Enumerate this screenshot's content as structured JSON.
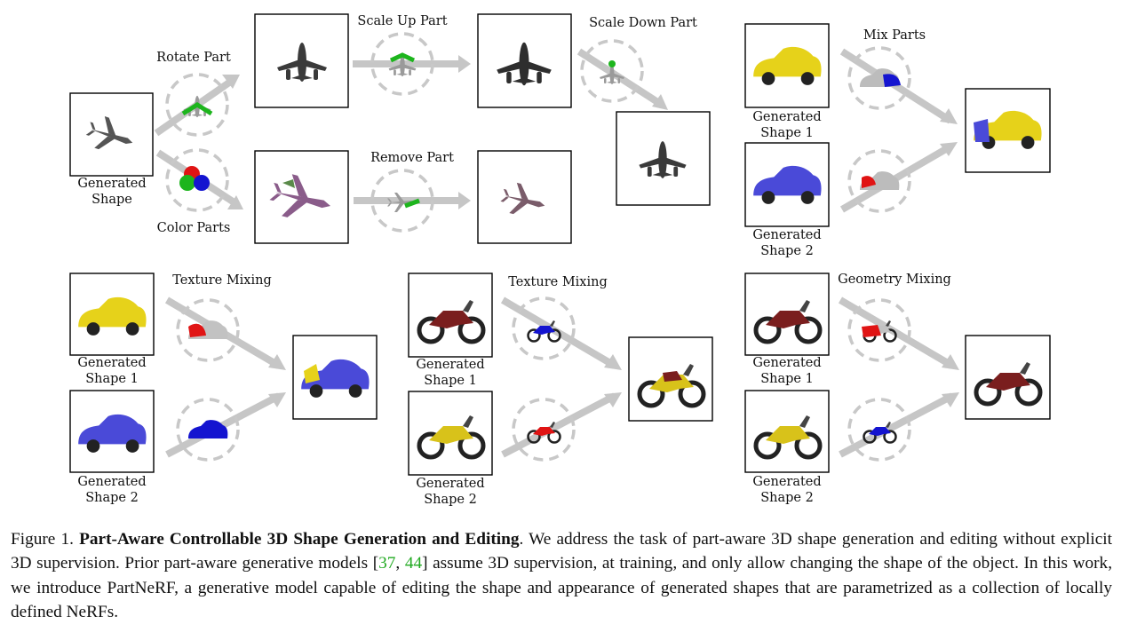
{
  "figure": {
    "labels": {
      "rotate_part": "Rotate Part",
      "scale_up_part": "Scale Up Part",
      "scale_down_part": "Scale Down Part",
      "remove_part": "Remove Part",
      "color_parts": "Color Parts",
      "mix_parts": "Mix Parts",
      "texture_mixing_1": "Texture Mixing",
      "texture_mixing_2": "Texture Mixing",
      "geometry_mixing": "Geometry Mixing",
      "generated_shape": [
        "Generated",
        "Shape"
      ],
      "generated_shape_1": [
        "Generated",
        "Shape 1"
      ],
      "generated_shape_2": [
        "Generated",
        "Shape 2"
      ]
    }
  },
  "caption": {
    "prefix": "Figure 1.",
    "title": "Part-Aware Controllable 3D Shape Generation and Editing",
    "text_1": ". We address the task of part-aware 3D shape generation and editing without explicit 3D supervision. Prior part-aware generative models [",
    "cite_1": "37",
    "cite_sep": ", ",
    "cite_2": "44",
    "text_2": "] assume 3D supervision, at training, and only allow changing the shape of the object. In this work, we introduce PartNeRF, a generative model capable of editing the shape and appearance of generated shapes that are parametrized as a collection of locally defined NeRFs."
  },
  "colors": {
    "arrow_gray": "#c6c6c6",
    "plane_dark": "#3a3a3a",
    "part_green": "#1db51d",
    "car_yellow": "#e6d21a",
    "car_blue": "#4a4ad8",
    "bike_maroon": "#7a1e1e",
    "bike_yellow": "#d8c21a",
    "part_red": "#e01414",
    "part_blue": "#1414d0",
    "cite_green": "#22aa22"
  }
}
